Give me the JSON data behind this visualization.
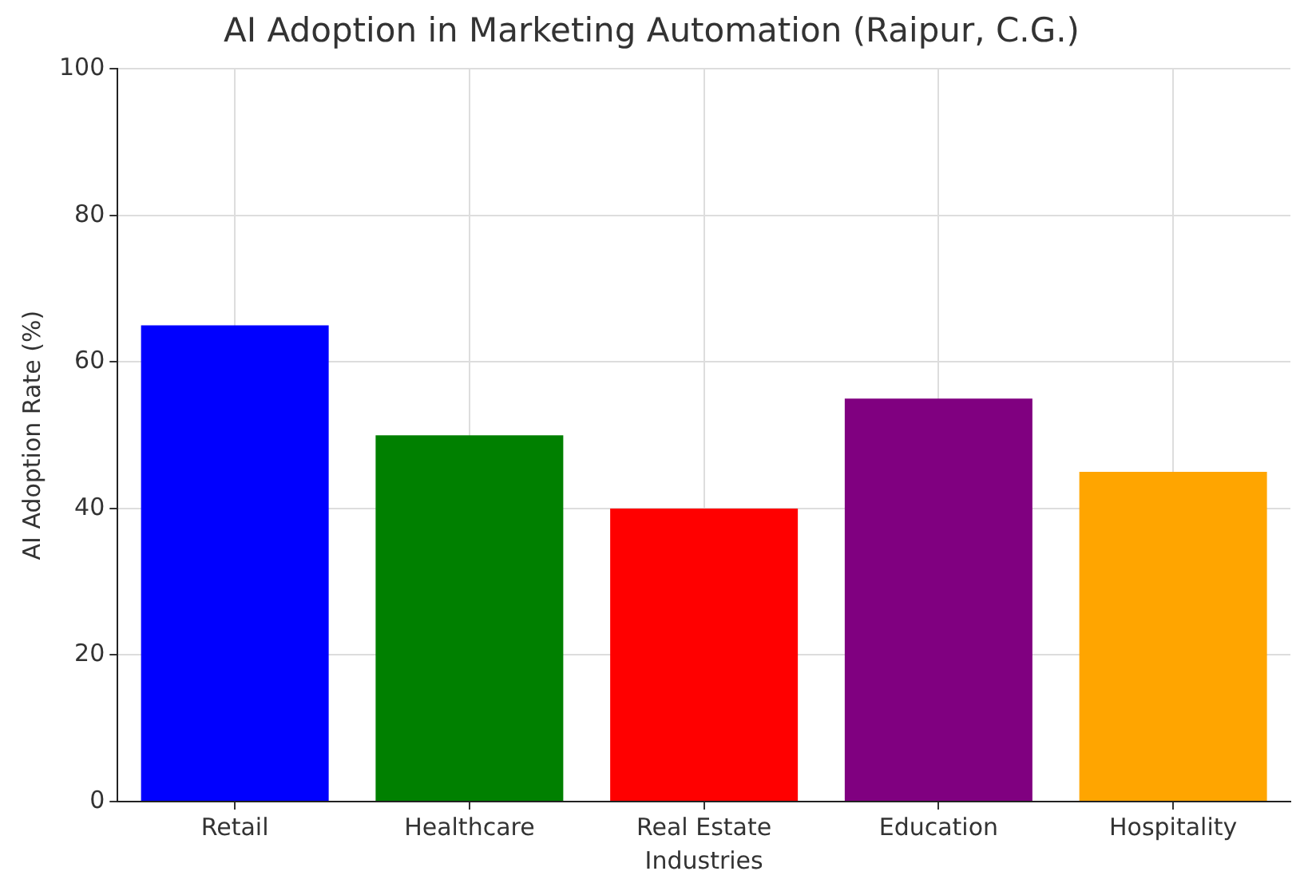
{
  "chart_data": {
    "type": "bar",
    "title": "AI Adoption in Marketing Automation (Raipur, C.G.)",
    "xlabel": "Industries",
    "ylabel": "AI Adoption Rate (%)",
    "categories": [
      "Retail",
      "Healthcare",
      "Real Estate",
      "Education",
      "Hospitality"
    ],
    "values": [
      65,
      50,
      40,
      55,
      45
    ],
    "colors": [
      "#0000ff",
      "#008000",
      "#ff0000",
      "#800080",
      "#ffa500"
    ],
    "ylim": [
      0,
      100
    ],
    "yticks": [
      0,
      20,
      40,
      60,
      80,
      100
    ],
    "grid": true,
    "legend": false
  }
}
